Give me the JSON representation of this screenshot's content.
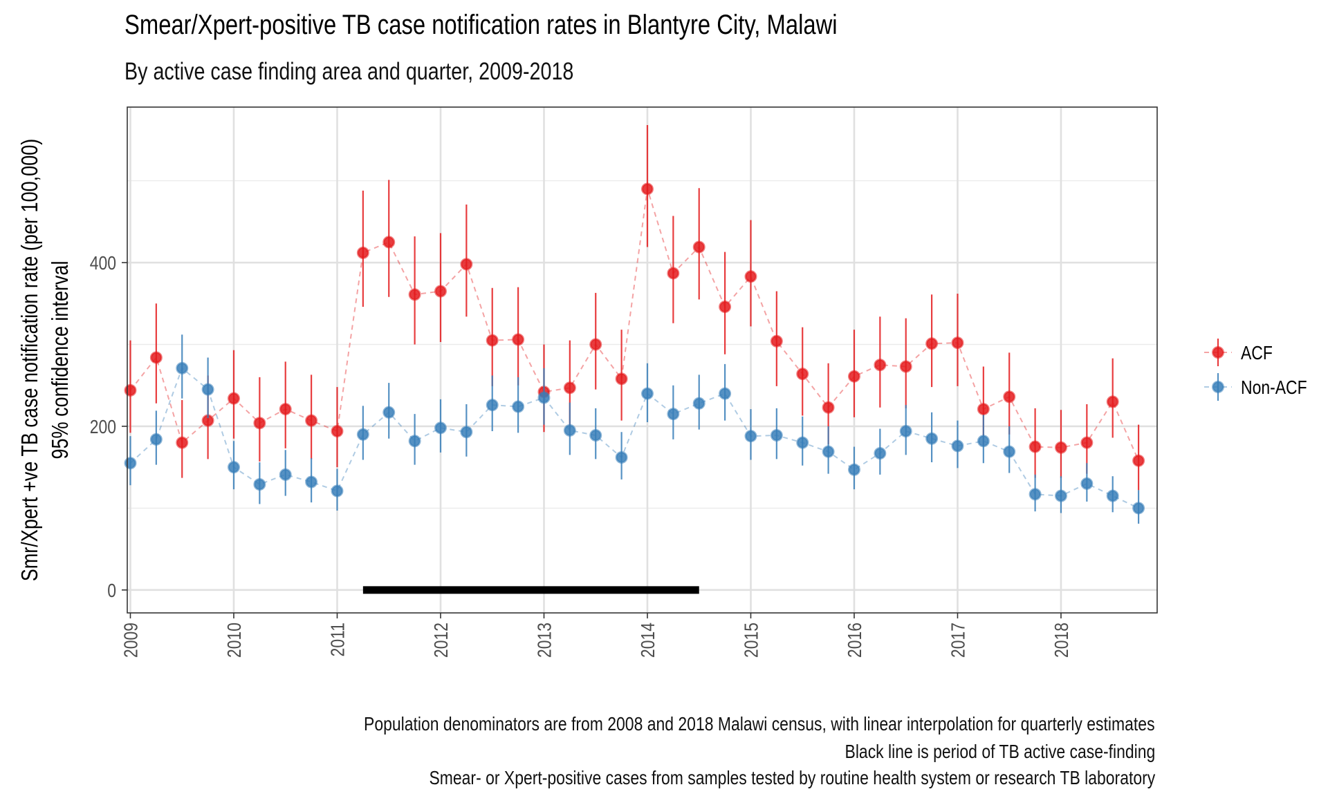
{
  "chart_data": {
    "type": "scatter",
    "title": "Smear/Xpert-positive TB case notification rates in Blantyre City, Malawi",
    "subtitle": "By active case finding area and quarter, 2009-2018",
    "ylabel": "Smr/Xpert +ve TB case notification rate (per 100,000)",
    "ylabel2": "95% confidence interval",
    "x_ticks": [
      "2009",
      "2010",
      "2011",
      "2012",
      "2013",
      "2014",
      "2015",
      "2016",
      "2017",
      "2018"
    ],
    "y_ticks": [
      0,
      200,
      400
    ],
    "xlim": [
      2008.97,
      2018.93
    ],
    "ylim": [
      -28,
      590
    ],
    "grid": true,
    "legend_position": "right",
    "x": [
      2009.0,
      2009.25,
      2009.5,
      2009.75,
      2010.0,
      2010.25,
      2010.5,
      2010.75,
      2011.0,
      2011.25,
      2011.5,
      2011.75,
      2012.0,
      2012.25,
      2012.5,
      2012.75,
      2013.0,
      2013.25,
      2013.5,
      2013.75,
      2014.0,
      2014.25,
      2014.5,
      2014.75,
      2015.0,
      2015.25,
      2015.5,
      2015.75,
      2016.0,
      2016.25,
      2016.5,
      2016.75,
      2017.0,
      2017.25,
      2017.5,
      2017.75,
      2018.0,
      2018.25,
      2018.5,
      2018.75
    ],
    "series": [
      {
        "name": "ACF",
        "color": "#e41a1c",
        "values": [
          244,
          284,
          180,
          207,
          234,
          204,
          221,
          207,
          194,
          412,
          425,
          361,
          365,
          398,
          305,
          306,
          242,
          247,
          300,
          258,
          490,
          387,
          419,
          346,
          383,
          304,
          264,
          223,
          261,
          275,
          273,
          301,
          302,
          221,
          236,
          175,
          174,
          180,
          230,
          158
        ],
        "lower": [
          192,
          228,
          137,
          160,
          185,
          157,
          173,
          160,
          150,
          346,
          358,
          300,
          303,
          334,
          249,
          250,
          193,
          197,
          245,
          207,
          419,
          326,
          355,
          288,
          322,
          249,
          213,
          178,
          211,
          223,
          222,
          248,
          249,
          177,
          190,
          137,
          137,
          142,
          186,
          122
        ],
        "upper": [
          305,
          350,
          232,
          262,
          293,
          260,
          279,
          263,
          248,
          488,
          501,
          432,
          436,
          471,
          369,
          370,
          300,
          305,
          363,
          318,
          568,
          457,
          491,
          413,
          452,
          365,
          321,
          277,
          318,
          334,
          332,
          361,
          362,
          273,
          290,
          222,
          220,
          227,
          283,
          202
        ]
      },
      {
        "name": "Non-ACF",
        "color": "#377eb8",
        "values": [
          155,
          184,
          271,
          245,
          150,
          129,
          141,
          132,
          121,
          190,
          217,
          182,
          198,
          193,
          226,
          224,
          235,
          195,
          189,
          162,
          240,
          215,
          228,
          240,
          188,
          189,
          180,
          169,
          147,
          167,
          194,
          185,
          176,
          182,
          169,
          117,
          115,
          130,
          115,
          100
        ],
        "lower": [
          128,
          153,
          234,
          210,
          123,
          105,
          115,
          107,
          97,
          159,
          185,
          153,
          168,
          163,
          194,
          192,
          202,
          165,
          160,
          135,
          205,
          184,
          196,
          207,
          159,
          160,
          152,
          142,
          123,
          141,
          165,
          156,
          149,
          155,
          143,
          96,
          94,
          108,
          95,
          81
        ],
        "upper": [
          188,
          219,
          312,
          284,
          182,
          156,
          171,
          161,
          148,
          225,
          253,
          215,
          233,
          227,
          262,
          260,
          271,
          229,
          222,
          193,
          277,
          250,
          263,
          276,
          221,
          222,
          212,
          200,
          175,
          197,
          226,
          217,
          207,
          214,
          200,
          141,
          139,
          155,
          139,
          122
        ]
      }
    ],
    "acf_period": [
      2011.25,
      2014.5
    ],
    "legend": [
      "ACF",
      "Non-ACF"
    ]
  },
  "captions": [
    "Population denominators are from 2008 and 2018 Malawi census, with linear interpolation for quarterly estimates",
    "Black line is period of TB active case-finding",
    "Smear- or Xpert-positive cases from samples tested by routine health system or research TB laboratory"
  ]
}
